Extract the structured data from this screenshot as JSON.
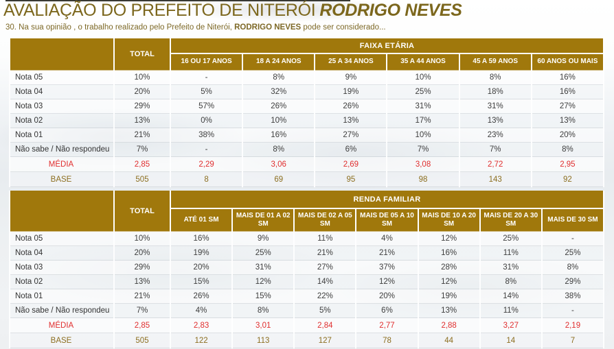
{
  "title": {
    "main": "AVALIAÇÃO DO PREFEITO DE NITERÓI",
    "emphasis": "RODRIGO NEVES"
  },
  "subtitle": {
    "prefix": "30. Na sua opinião , o trabalho realizado pelo Prefeito de Niterói, ",
    "bold": "RODRIGO NEVES",
    "suffix": " pode ser considerado..."
  },
  "colors": {
    "header_gold": "#a0780c",
    "title_olive": "#7c671d",
    "media_red": "#e02e2e",
    "base_olive": "#8c6e1f"
  },
  "chart_data": [
    {
      "type": "table",
      "name": "faixa-etaria",
      "group_label": "FAIXA ETÁRIA",
      "total_label": "TOTAL",
      "columns": [
        "16 OU 17 ANOS",
        "18 A 24 ANOS",
        "25 A 34 ANOS",
        "35 A 44 ANOS",
        "45 A 59 ANOS",
        "60 ANOS OU MAIS"
      ],
      "rows": [
        {
          "label": "Nota 05",
          "total": "10%",
          "values": [
            "-",
            "8%",
            "9%",
            "10%",
            "8%",
            "16%"
          ]
        },
        {
          "label": "Nota 04",
          "total": "20%",
          "values": [
            "5%",
            "32%",
            "19%",
            "25%",
            "18%",
            "16%"
          ]
        },
        {
          "label": "Nota 03",
          "total": "29%",
          "values": [
            "57%",
            "26%",
            "26%",
            "31%",
            "31%",
            "27%"
          ]
        },
        {
          "label": "Nota 02",
          "total": "13%",
          "values": [
            "0%",
            "10%",
            "13%",
            "17%",
            "13%",
            "13%"
          ]
        },
        {
          "label": "Nota 01",
          "total": "21%",
          "values": [
            "38%",
            "16%",
            "27%",
            "10%",
            "23%",
            "20%"
          ]
        },
        {
          "label": "Não sabe / Não respondeu",
          "total": "7%",
          "values": [
            "-",
            "8%",
            "6%",
            "7%",
            "7%",
            "8%"
          ]
        }
      ],
      "media": {
        "label": "MÉDIA",
        "total": "2,85",
        "values": [
          "2,29",
          "3,06",
          "2,69",
          "3,08",
          "2,72",
          "2,95"
        ]
      },
      "base": {
        "label": "BASE",
        "total": "505",
        "values": [
          "8",
          "69",
          "95",
          "98",
          "143",
          "92"
        ]
      }
    },
    {
      "type": "table",
      "name": "renda-familiar",
      "group_label": "RENDA FAMILIAR",
      "total_label": "TOTAL",
      "columns": [
        "ATÉ 01 SM",
        "MAIS DE 01 A 02 SM",
        "MAIS DE 02 A 05 SM",
        "MAIS DE 05 A 10 SM",
        "MAIS DE 10 A 20 SM",
        "MAIS DE 20 A 30 SM",
        "MAIS DE 30 SM"
      ],
      "rows": [
        {
          "label": "Nota 05",
          "total": "10%",
          "values": [
            "16%",
            "9%",
            "11%",
            "4%",
            "12%",
            "25%",
            "-"
          ]
        },
        {
          "label": "Nota 04",
          "total": "20%",
          "values": [
            "19%",
            "25%",
            "21%",
            "21%",
            "16%",
            "11%",
            "25%"
          ]
        },
        {
          "label": "Nota 03",
          "total": "29%",
          "values": [
            "20%",
            "31%",
            "27%",
            "37%",
            "28%",
            "31%",
            "8%"
          ]
        },
        {
          "label": "Nota 02",
          "total": "13%",
          "values": [
            "15%",
            "12%",
            "14%",
            "12%",
            "12%",
            "8%",
            "29%"
          ]
        },
        {
          "label": "Nota 01",
          "total": "21%",
          "values": [
            "26%",
            "15%",
            "22%",
            "20%",
            "19%",
            "14%",
            "38%"
          ]
        },
        {
          "label": "Não sabe / Não respondeu",
          "total": "7%",
          "values": [
            "4%",
            "8%",
            "5%",
            "6%",
            "13%",
            "11%",
            "-"
          ]
        }
      ],
      "media": {
        "label": "MÉDIA",
        "total": "2,85",
        "values": [
          "2,83",
          "3,01",
          "2,84",
          "2,77",
          "2,88",
          "3,27",
          "2,19"
        ]
      },
      "base": {
        "label": "BASE",
        "total": "505",
        "values": [
          "122",
          "113",
          "127",
          "78",
          "44",
          "14",
          "7"
        ]
      }
    }
  ]
}
